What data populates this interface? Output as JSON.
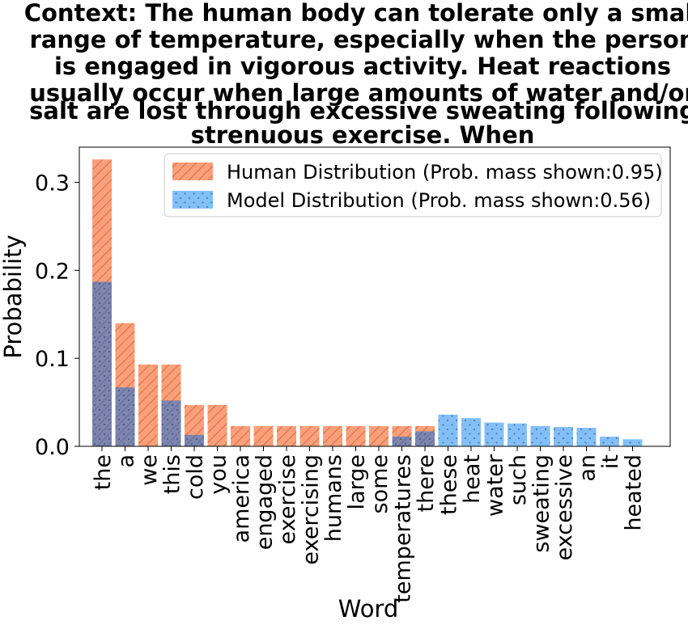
{
  "chart_data": {
    "type": "bar",
    "title_lines": [
      "Context: The human body can tolerate only a small",
      "range of temperature, especially when the person",
      "is engaged in vigorous activity. Heat reactions",
      "usually occur when large amounts of water and/or",
      "salt are lost through excessive sweating following",
      "strenuous exercise. When"
    ],
    "xlabel": "Word",
    "ylabel": "Probability",
    "ylim": [
      0,
      0.34
    ],
    "yticks": [
      0.0,
      0.1,
      0.2,
      0.3
    ],
    "ytick_labels": [
      "0.0",
      "0.1",
      "0.2",
      "0.3"
    ],
    "categories": [
      "the",
      "a",
      "we",
      "this",
      "cold",
      "you",
      "america",
      "engaged",
      "exercise",
      "exercising",
      "humans",
      "large",
      "some",
      "temperatures",
      "there",
      "these",
      "heat",
      "water",
      "such",
      "sweating",
      "excessive",
      "an",
      "it",
      "heated"
    ],
    "series": [
      {
        "name": "Human Distribution (Prob. mass shown:0.95)",
        "color": "#f9a07a",
        "hatch": "diagonal",
        "values": [
          0.326,
          0.14,
          0.093,
          0.093,
          0.047,
          0.047,
          0.023,
          0.023,
          0.023,
          0.023,
          0.023,
          0.023,
          0.023,
          0.023,
          0.023,
          0,
          0,
          0,
          0,
          0,
          0,
          0,
          0,
          0
        ]
      },
      {
        "name": "Model Distribution (Prob. mass shown:0.56)",
        "color": "#83bff7",
        "hatch": "dots",
        "values": [
          0.187,
          0.067,
          0,
          0.052,
          0.013,
          0,
          0,
          0,
          0,
          0,
          0,
          0,
          0,
          0.011,
          0.017,
          0.036,
          0.032,
          0.027,
          0.026,
          0.023,
          0.022,
          0.021,
          0.011,
          0.008
        ]
      }
    ],
    "legend_position": "top-right"
  }
}
